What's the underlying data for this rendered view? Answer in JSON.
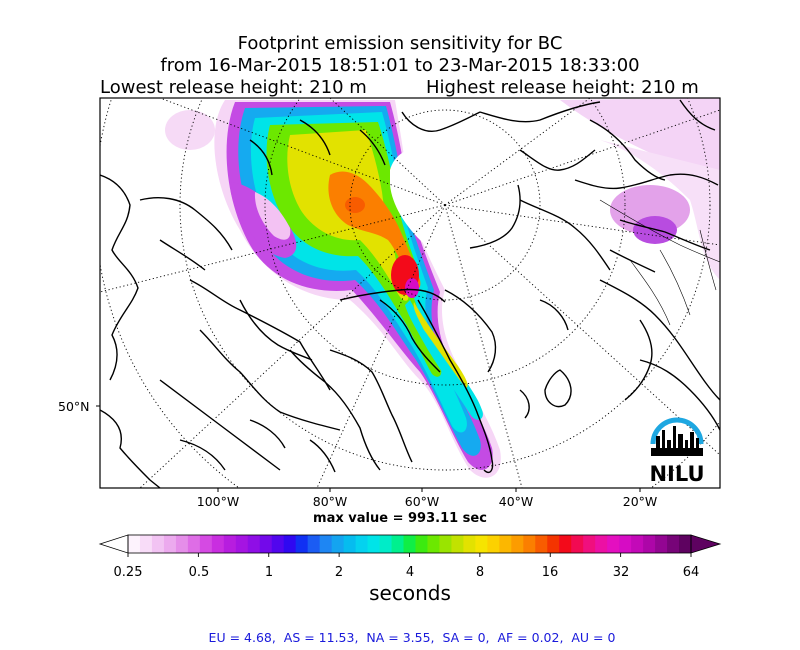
{
  "title": {
    "line1": "Footprint emission sensitivity for BC",
    "line2": "from 16-Mar-2015 18:51:01 to 23-Mar-2015 18:33:00",
    "lowest_release": "Lowest release height: 210 m",
    "highest_release": "Highest release height: 210 m"
  },
  "map": {
    "lon_labels": [
      "100°W",
      "80°W",
      "60°W",
      "40°W",
      "20°W"
    ],
    "lat_label": "50°N",
    "max_value": "max value = 993.11 sec",
    "logo_text": "NILU",
    "logo_color": "#1ea7e1"
  },
  "colorbar": {
    "ticks": [
      "0.25",
      "0.5",
      "1",
      "2",
      "4",
      "8",
      "16",
      "32",
      "64"
    ],
    "unit": "seconds",
    "colors": [
      "#fdf3fd",
      "#f8dcf8",
      "#f2c3f3",
      "#ecaaee",
      "#e58ee9",
      "#de6de6",
      "#d54ae3",
      "#c92ee0",
      "#b71ddf",
      "#a514e2",
      "#8f0ee6",
      "#7309ea",
      "#5106ee",
      "#2f08f1",
      "#1030f3",
      "#1b5cf3",
      "#1e86f3",
      "#14a4f0",
      "#06bcef",
      "#04d2ef",
      "#00e4e8",
      "#00ecc8",
      "#00f08e",
      "#10ee45",
      "#3cea10",
      "#6ce800",
      "#9ae400",
      "#c2e200",
      "#e2e200",
      "#f6e400",
      "#fcd100",
      "#fcb700",
      "#fc9c00",
      "#fb7f00",
      "#f85c00",
      "#f43400",
      "#f30a1a",
      "#f20a52",
      "#f00f7e",
      "#ec10a4",
      "#e40fc0",
      "#d60cc4",
      "#c309b8",
      "#ad06a8",
      "#930592",
      "#770478",
      "#5e0260"
    ]
  },
  "stats": "EU = 4.68,  AS = 11.53,  NA = 3.55,  SA = 0,  AF = 0.02,  AU = 0"
}
